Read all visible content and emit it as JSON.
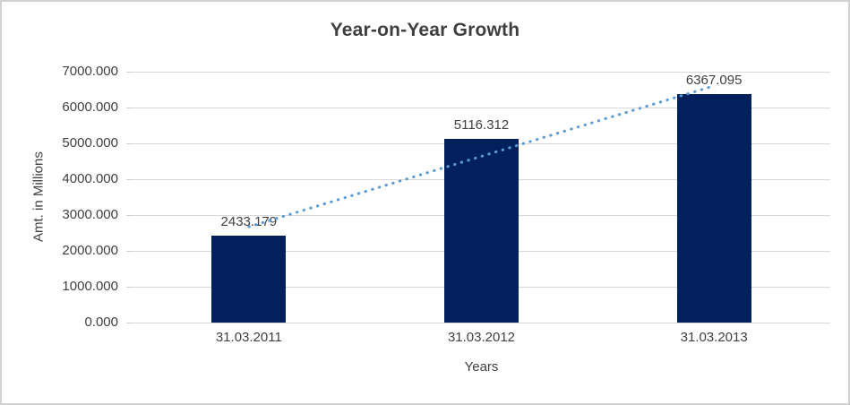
{
  "frame": {
    "background": "#ffffff",
    "border_color": "#d2d2d2"
  },
  "chart_data": {
    "type": "bar",
    "title": "Year-on-Year Growth",
    "xlabel": "Years",
    "ylabel": "Amt. in Millions",
    "categories": [
      "31.03.2011",
      "31.03.2012",
      "31.03.2013"
    ],
    "values": [
      2433.179,
      5116.312,
      6367.095
    ],
    "data_labels": [
      "2433.179",
      "5116.312",
      "6367.095"
    ],
    "ylim": [
      0,
      7000
    ],
    "ytick_step": 1000,
    "ytick_labels": [
      "0.000",
      "1000.000",
      "2000.000",
      "3000.000",
      "4000.000",
      "5000.000",
      "6000.000",
      "7000.000"
    ],
    "grid": true,
    "legend": "none",
    "bar_color": "#02215c",
    "trendline": {
      "type": "linear",
      "style": "dotted",
      "color": "#5b9bd5"
    },
    "gridline_color": "#d9d9d9",
    "text_color": "#404040"
  }
}
